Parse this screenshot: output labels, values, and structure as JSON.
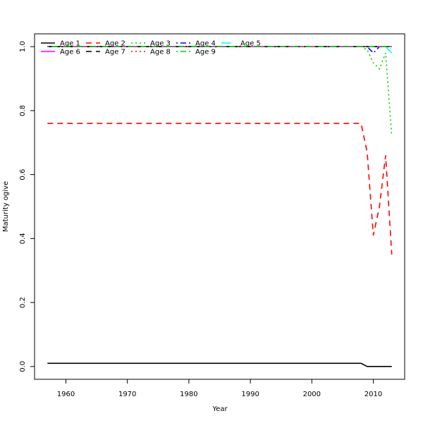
{
  "chart_data": {
    "type": "line",
    "title": "",
    "xlabel": "Year",
    "ylabel": "Maturity ogive",
    "xlim": [
      1954.9,
      2015.1
    ],
    "ylim": [
      -0.04,
      1.04
    ],
    "x_ticks": [
      "1960",
      "1970",
      "1980",
      "1990",
      "2000",
      "2010"
    ],
    "y_ticks": [
      "0.0",
      "0.2",
      "0.4",
      "0.6",
      "0.8",
      "1.0"
    ],
    "grid": false,
    "legend": {
      "position": "top-left",
      "columns": 5
    },
    "series": [
      {
        "name": "Age 1",
        "color": "#000000",
        "dash": "solid",
        "points": [
          [
            1957,
            0.01
          ],
          [
            2008,
            0.01
          ],
          [
            2009,
            0.0
          ],
          [
            2013,
            0.0
          ]
        ]
      },
      {
        "name": "Age 2",
        "color": "#ff0000",
        "dash": "dashed",
        "points": [
          [
            1957,
            0.76
          ],
          [
            2008,
            0.76
          ],
          [
            2009,
            0.67
          ],
          [
            2010,
            0.41
          ],
          [
            2011,
            0.5
          ],
          [
            2012,
            0.66
          ],
          [
            2013,
            0.35
          ]
        ]
      },
      {
        "name": "Age 3",
        "color": "#00cd00",
        "dash": "dotted",
        "points": [
          [
            1957,
            1.0
          ],
          [
            2008,
            1.0
          ],
          [
            2009,
            0.99
          ],
          [
            2010,
            0.95
          ],
          [
            2011,
            0.93
          ],
          [
            2012,
            0.98
          ],
          [
            2013,
            0.72
          ]
        ]
      },
      {
        "name": "Age 4",
        "color": "#0000ff",
        "dash": "dotdash",
        "points": [
          [
            1957,
            1.0
          ],
          [
            2008,
            1.0
          ],
          [
            2009,
            1.0
          ],
          [
            2010,
            0.98
          ],
          [
            2011,
            1.0
          ],
          [
            2012,
            1.0
          ],
          [
            2013,
            1.0
          ]
        ]
      },
      {
        "name": "Age 5",
        "color": "#00ffff",
        "dash": "longdash",
        "points": [
          [
            1957,
            1.0
          ],
          [
            2011,
            1.0
          ],
          [
            2012,
            1.0
          ],
          [
            2013,
            0.98
          ]
        ]
      },
      {
        "name": "Age 6",
        "color": "#ff00ff",
        "dash": "solid",
        "points": [
          [
            1957,
            1.0
          ],
          [
            2013,
            1.0
          ]
        ]
      },
      {
        "name": "Age 7",
        "color": "#000000",
        "dash": "dashed",
        "points": [
          [
            1957,
            1.0
          ],
          [
            2013,
            1.0
          ]
        ]
      },
      {
        "name": "Age 8",
        "color": "#ff0000",
        "dash": "dotted",
        "points": [
          [
            1957,
            1.0
          ],
          [
            2013,
            1.0
          ]
        ]
      },
      {
        "name": "Age 9",
        "color": "#00cd00",
        "dash": "dotdash",
        "points": [
          [
            1957,
            1.0
          ],
          [
            2013,
            1.0
          ]
        ]
      }
    ]
  }
}
